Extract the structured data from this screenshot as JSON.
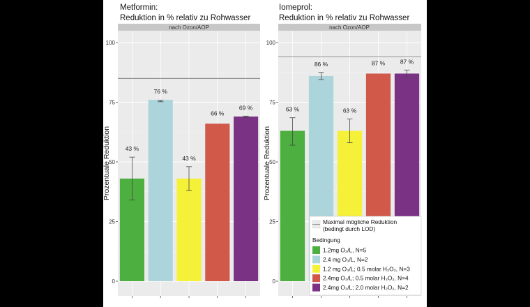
{
  "chart_data": [
    {
      "type": "bar",
      "title_line1": "Metformin:",
      "title_line2": "Reduktion in % relativ zu Rohwasser",
      "facet_label": "nach Ozon/AOP",
      "ylabel": "Prozentuale Reduktion",
      "ylim": [
        0,
        105
      ],
      "yticks": [
        "0",
        "25",
        "50",
        "75",
        "100"
      ],
      "max_reduction": 85,
      "values": [
        43,
        76,
        43,
        66,
        69
      ],
      "value_labels": [
        "43 %",
        "76 %",
        "43 %",
        "66 %",
        "69 %"
      ],
      "errors": [
        [
          34,
          52
        ],
        [
          75.2,
          75.8
        ],
        [
          38,
          48
        ],
        null,
        [
          68.6,
          69.2
        ]
      ]
    },
    {
      "type": "bar",
      "title_line1": "Iomeprol:",
      "title_line2": "Reduktion in % relativ zu Rohwasser",
      "facet_label": "nach Ozon/AOP",
      "ylabel": "Prozentuale Reduktion",
      "ylim": [
        0,
        105
      ],
      "yticks": [
        "0",
        "25",
        "50",
        "75",
        "100"
      ],
      "max_reduction": 94,
      "values": [
        63,
        86,
        63,
        87,
        87
      ],
      "value_labels": [
        "63 %",
        "86 %",
        "63 %",
        "87 %",
        "87 %"
      ],
      "errors": [
        [
          57,
          68.5
        ],
        [
          84.5,
          87.5
        ],
        [
          58,
          68
        ],
        null,
        [
          85.5,
          88.5
        ]
      ]
    }
  ],
  "colors": [
    "#4caf3f",
    "#acd4db",
    "#f5f139",
    "#d1594a",
    "#7a3285"
  ],
  "legend": {
    "max_line_1": "Maximal mögliche Reduktion",
    "max_line_2": "(bedingt durch LOD)",
    "header": "Bedingung",
    "items": [
      "1.2mg O₃/L, N=5",
      "2.4 mg O₃/L, N=2",
      "1.2 mg O₃/L; 0.5 molar H₂O₂, N=3",
      "2.4mg O₃/L; 0.5 molar H₂O₂, N=4",
      "2.4mg O₃/L; 2.0 molar H₂O₂, N=2"
    ]
  }
}
